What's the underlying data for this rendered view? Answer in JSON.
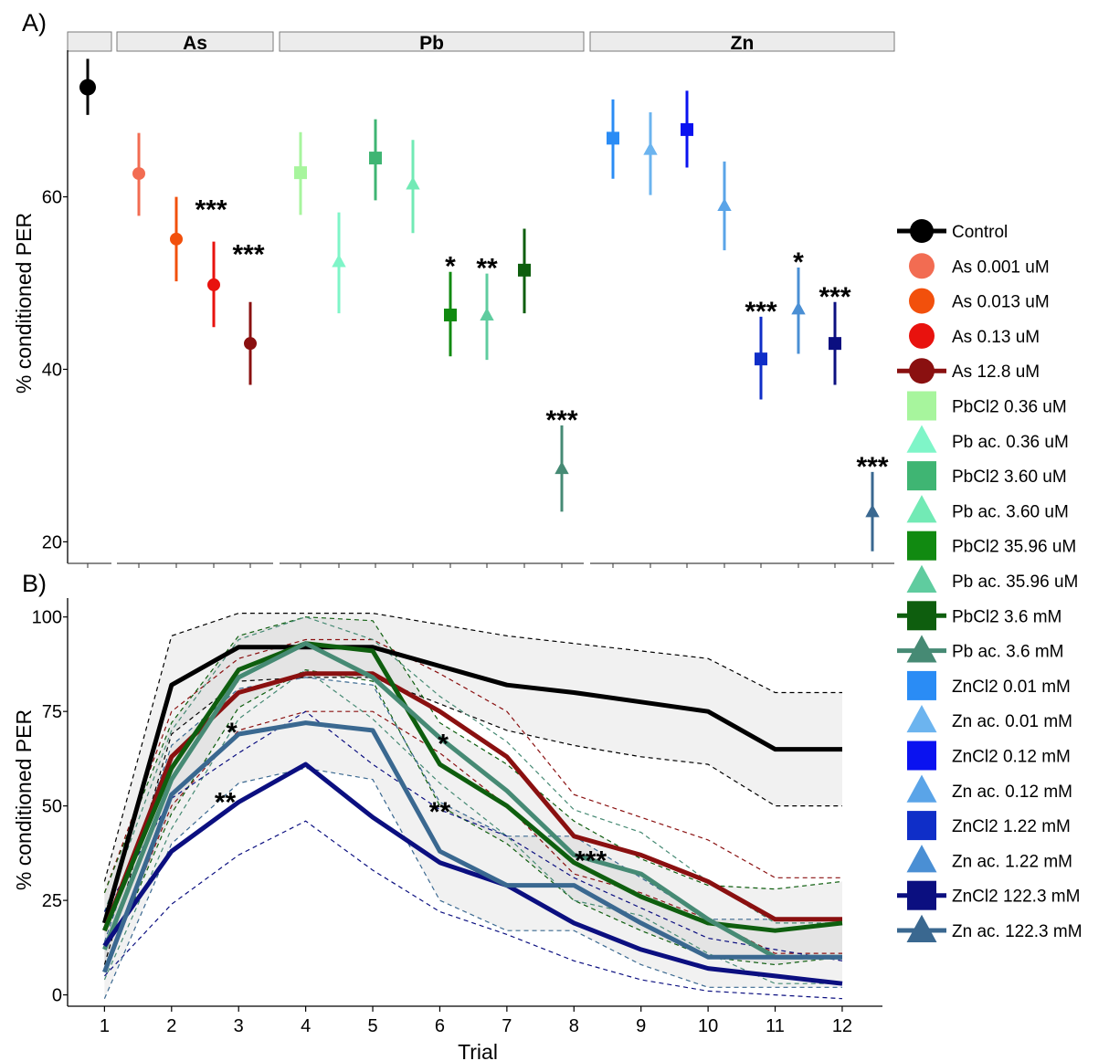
{
  "figure": {
    "panel_a_label": "A)",
    "panel_b_label": "B)"
  },
  "colors": {
    "Control": "#000000",
    "As 0.001 uM": "#f26c52",
    "As 0.013 uM": "#f2500c",
    "As 0.13 uM": "#e8120e",
    "As 12.8 uM": "#8a1010",
    "PbCl2 0.36 uM": "#a7f59d",
    "Pb ac. 0.36 uM": "#7ff5c8",
    "PbCl2 3.60 uM": "#3fb573",
    "Pb ac. 3.60 uM": "#72eab5",
    "PbCl2 35.96 uM": "#118a11",
    "Pb ac. 35.96 uM": "#5fcc9f",
    "PbCl2 3.6 mM": "#0e5e0e",
    "Pb ac. 3.6 mM": "#468a74",
    "ZnCl2 0.01 mM": "#2a8cf5",
    "Zn ac. 0.01 mM": "#6cb4ef",
    "ZnCl2 0.12 mM": "#0a12f0",
    "Zn ac. 0.12 mM": "#5aa4e8",
    "ZnCl2 1.22 mM": "#0f2ec8",
    "Zn ac. 1.22 mM": "#4a8fd4",
    "ZnCl2 122.3 mM": "#0b0f80",
    "Zn ac. 122.3 mM": "#3a6890"
  },
  "legend": [
    {
      "label": "Control",
      "shape": "circle",
      "line": true
    },
    {
      "label": "As 0.001 uM",
      "shape": "circle",
      "line": false
    },
    {
      "label": "As 0.013 uM",
      "shape": "circle",
      "line": false
    },
    {
      "label": "As 0.13 uM",
      "shape": "circle",
      "line": false
    },
    {
      "label": "As 12.8 uM",
      "shape": "circle",
      "line": true
    },
    {
      "label": "PbCl2 0.36 uM",
      "shape": "square",
      "line": false
    },
    {
      "label": "Pb ac. 0.36 uM",
      "shape": "triangle",
      "line": false
    },
    {
      "label": "PbCl2 3.60 uM",
      "shape": "square",
      "line": false
    },
    {
      "label": "Pb ac. 3.60 uM",
      "shape": "triangle",
      "line": false
    },
    {
      "label": "PbCl2 35.96 uM",
      "shape": "square",
      "line": false
    },
    {
      "label": "Pb ac. 35.96 uM",
      "shape": "triangle",
      "line": false
    },
    {
      "label": "PbCl2 3.6 mM",
      "shape": "square",
      "line": true
    },
    {
      "label": "Pb ac. 3.6 mM",
      "shape": "triangle",
      "line": true
    },
    {
      "label": "ZnCl2 0.01 mM",
      "shape": "square",
      "line": false
    },
    {
      "label": "Zn ac. 0.01 mM",
      "shape": "triangle",
      "line": false
    },
    {
      "label": "ZnCl2 0.12 mM",
      "shape": "square",
      "line": false
    },
    {
      "label": "Zn ac. 0.12 mM",
      "shape": "triangle",
      "line": false
    },
    {
      "label": "ZnCl2 1.22 mM",
      "shape": "square",
      "line": false
    },
    {
      "label": "Zn ac. 1.22 mM",
      "shape": "triangle",
      "line": false
    },
    {
      "label": "ZnCl2 122.3 mM",
      "shape": "square",
      "line": true
    },
    {
      "label": "Zn ac. 122.3 mM",
      "shape": "triangle",
      "line": true
    }
  ],
  "chart_data": [
    {
      "panel": "A)",
      "type": "scatter",
      "ylabel": "% conditioned PER",
      "yticks": [
        20,
        40,
        60
      ],
      "ylim": [
        17.5,
        77
      ],
      "facets": [
        {
          "label": "",
          "groups": [
            "Control"
          ]
        },
        {
          "label": "As",
          "groups": [
            "As 0.001 uM",
            "As 0.013 uM",
            "As 0.13 uM",
            "As 12.8 uM"
          ]
        },
        {
          "label": "Pb",
          "groups": [
            "PbCl2 0.36 uM",
            "Pb ac. 0.36 uM",
            "PbCl2 3.60 uM",
            "Pb ac. 3.60 uM",
            "PbCl2 35.96 uM",
            "Pb ac. 35.96 uM",
            "PbCl2 3.6 mM",
            "Pb ac. 3.6 mM"
          ]
        },
        {
          "label": "Zn",
          "groups": [
            "ZnCl2 0.01 mM",
            "Zn ac. 0.01 mM",
            "ZnCl2 0.12 mM",
            "Zn ac. 0.12 mM",
            "ZnCl2 1.22 mM",
            "Zn ac. 1.22 mM",
            "ZnCl2 122.3 mM",
            "Zn ac. 122.3 mM"
          ]
        }
      ],
      "points": [
        {
          "group": "Control",
          "shape": "circle",
          "y": 72.7,
          "low": 69.5,
          "high": 76.0,
          "sig": ""
        },
        {
          "group": "As 0.001 uM",
          "shape": "circle",
          "y": 62.7,
          "low": 57.8,
          "high": 67.4,
          "sig": ""
        },
        {
          "group": "As 0.013 uM",
          "shape": "circle",
          "y": 55.1,
          "low": 50.2,
          "high": 60.0,
          "sig": "***"
        },
        {
          "group": "As 0.13 uM",
          "shape": "circle",
          "y": 49.8,
          "low": 44.9,
          "high": 54.8,
          "sig": "***"
        },
        {
          "group": "As 12.8 uM",
          "shape": "circle",
          "y": 43.0,
          "low": 38.2,
          "high": 47.8,
          "sig": ""
        },
        {
          "group": "PbCl2 0.36 uM",
          "shape": "square",
          "y": 62.8,
          "low": 57.9,
          "high": 67.5,
          "sig": ""
        },
        {
          "group": "Pb ac. 0.36 uM",
          "shape": "triangle",
          "y": 52.5,
          "low": 46.5,
          "high": 58.2,
          "sig": ""
        },
        {
          "group": "PbCl2 3.60 uM",
          "shape": "square",
          "y": 64.5,
          "low": 59.6,
          "high": 69.0,
          "sig": ""
        },
        {
          "group": "Pb ac. 3.60 uM",
          "shape": "triangle",
          "y": 61.5,
          "low": 55.8,
          "high": 66.6,
          "sig": ""
        },
        {
          "group": "PbCl2 35.96 uM",
          "shape": "square",
          "y": 46.3,
          "low": 41.5,
          "high": 51.3,
          "sig": "*"
        },
        {
          "group": "Pb ac. 35.96 uM",
          "shape": "triangle",
          "y": 46.3,
          "low": 41.1,
          "high": 51.1,
          "sig": "**"
        },
        {
          "group": "PbCl2 3.6 mM",
          "shape": "square",
          "y": 51.5,
          "low": 46.5,
          "high": 56.3,
          "sig": ""
        },
        {
          "group": "Pb ac. 3.6 mM",
          "shape": "triangle",
          "y": 28.5,
          "low": 23.5,
          "high": 33.5,
          "sig": "***"
        },
        {
          "group": "ZnCl2 0.01 mM",
          "shape": "square",
          "y": 66.8,
          "low": 62.1,
          "high": 71.3,
          "sig": ""
        },
        {
          "group": "Zn ac. 0.01 mM",
          "shape": "triangle",
          "y": 65.5,
          "low": 60.2,
          "high": 69.8,
          "sig": ""
        },
        {
          "group": "ZnCl2 0.12 mM",
          "shape": "square",
          "y": 67.8,
          "low": 63.4,
          "high": 72.3,
          "sig": ""
        },
        {
          "group": "Zn ac. 0.12 mM",
          "shape": "triangle",
          "y": 59.0,
          "low": 53.8,
          "high": 64.1,
          "sig": ""
        },
        {
          "group": "ZnCl2 1.22 mM",
          "shape": "square",
          "y": 41.2,
          "low": 36.5,
          "high": 46.1,
          "sig": "***"
        },
        {
          "group": "Zn ac. 1.22 mM",
          "shape": "triangle",
          "y": 47.0,
          "low": 41.8,
          "high": 51.8,
          "sig": "*"
        },
        {
          "group": "ZnCl2 122.3 mM",
          "shape": "square",
          "y": 43.0,
          "low": 38.2,
          "high": 47.8,
          "sig": "***"
        },
        {
          "group": "Zn ac. 122.3 mM",
          "shape": "triangle",
          "y": 23.5,
          "low": 18.9,
          "high": 28.1,
          "sig": "***"
        }
      ]
    },
    {
      "panel": "B)",
      "type": "line",
      "xlabel": "Trial",
      "ylabel": "% conditioned PER",
      "x": [
        1,
        2,
        3,
        4,
        5,
        6,
        7,
        8,
        9,
        10,
        11,
        12
      ],
      "xlim": [
        0.45,
        12.6
      ],
      "ylim": [
        -3,
        105
      ],
      "yticks": [
        0,
        25,
        50,
        75,
        100
      ],
      "series": [
        {
          "group": "Control",
          "values": [
            19,
            82,
            92,
            92,
            92,
            87,
            82,
            80,
            77.5,
            75,
            65,
            65
          ],
          "low": [
            8,
            69,
            83,
            84,
            84,
            77,
            70,
            66,
            63,
            61,
            50,
            50
          ],
          "high": [
            30,
            95,
            101,
            101,
            101,
            98,
            95,
            93,
            91,
            89,
            80,
            80
          ],
          "shaded": true
        },
        {
          "group": "As 12.8 uM",
          "values": [
            17,
            63,
            80,
            85,
            85,
            75,
            63,
            42,
            37,
            30,
            20,
            20
          ],
          "low": [
            7,
            50,
            70,
            75,
            75,
            64,
            50,
            32,
            27,
            20,
            11,
            11
          ],
          "high": [
            27,
            75,
            89,
            94,
            94,
            85,
            75,
            53,
            47,
            41,
            31,
            31
          ],
          "shaded": false
        },
        {
          "group": "PbCl2 3.6 mM",
          "values": [
            17,
            60,
            86,
            93,
            91,
            61,
            50,
            35,
            26,
            19,
            17,
            19
          ],
          "low": [
            7,
            48,
            76,
            86,
            83,
            50,
            40,
            25,
            17,
            10,
            8,
            10
          ],
          "high": [
            27,
            72,
            95,
            100,
            99,
            72,
            61,
            46,
            36,
            29,
            28,
            30
          ],
          "shaded": true
        },
        {
          "group": "Pb ac. 3.6 mM",
          "values": [
            12,
            57,
            84,
            93,
            84,
            68,
            54,
            37,
            32,
            20,
            10,
            10
          ],
          "low": [
            4,
            44,
            73,
            86,
            73,
            56,
            42,
            25,
            21,
            11,
            3,
            3
          ],
          "high": [
            22,
            70,
            94,
            100,
            94,
            79,
            67,
            49,
            43,
            30,
            19,
            19
          ],
          "shaded": false
        },
        {
          "group": "ZnCl2 122.3 mM",
          "values": [
            13,
            38,
            51,
            61,
            47,
            35,
            29,
            19,
            12,
            7,
            5,
            3
          ],
          "low": [
            5,
            24,
            37,
            46,
            33,
            22,
            16,
            9,
            4,
            1,
            0,
            -1
          ],
          "high": [
            22,
            52,
            64,
            75,
            61,
            49,
            42,
            31,
            23,
            15,
            12,
            9
          ],
          "shaded": false
        },
        {
          "group": "Zn ac. 122.3 mM",
          "values": [
            6,
            53,
            69,
            72,
            70,
            38,
            29,
            29,
            19,
            10,
            10,
            10
          ],
          "low": [
            -1,
            40,
            56,
            60,
            57,
            25,
            17,
            17,
            8,
            2,
            2,
            2
          ],
          "high": [
            14,
            66,
            81,
            84,
            82,
            51,
            42,
            42,
            31,
            20,
            20,
            20
          ],
          "shaded": true
        }
      ],
      "annotations": [
        {
          "text": "*",
          "x": 2.9,
          "y": 70
        },
        {
          "text": "**",
          "x": 2.8,
          "y": 51.5
        },
        {
          "text": "*",
          "x": 6.05,
          "y": 67
        },
        {
          "text": "**",
          "x": 6.0,
          "y": 49
        },
        {
          "text": "***",
          "x": 8.25,
          "y": 36
        }
      ]
    }
  ]
}
